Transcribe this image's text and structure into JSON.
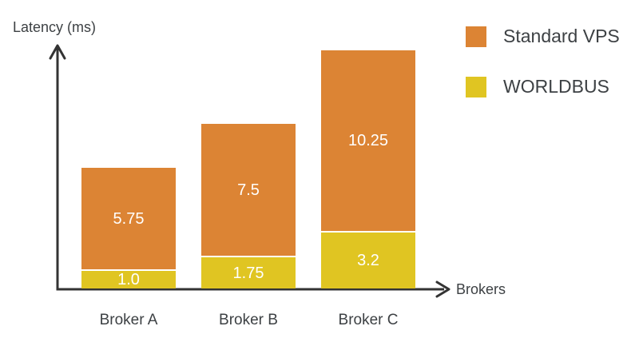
{
  "axes": {
    "y_label": "Latency (ms)",
    "x_label": "Brokers"
  },
  "legend": {
    "items": [
      {
        "label": "Standard VPS",
        "color": "#dc8434"
      },
      {
        "label": "WORLDBUS",
        "color": "#e0c522"
      }
    ]
  },
  "chart_data": {
    "type": "bar",
    "stacked": true,
    "title": "",
    "xlabel": "Brokers",
    "ylabel": "Latency (ms)",
    "categories": [
      "Broker A",
      "Broker B",
      "Broker C"
    ],
    "series": [
      {
        "name": "Standard VPS",
        "color": "#dc8434",
        "values": [
          5.75,
          7.5,
          10.25
        ],
        "labels": [
          "5.75",
          "7.5",
          "10.25"
        ]
      },
      {
        "name": "WORLDBUS",
        "color": "#e0c522",
        "values": [
          1.0,
          1.75,
          3.2
        ],
        "labels": [
          "1.0",
          "1.75",
          "3.2"
        ]
      }
    ],
    "value_label_color": "#ffffff",
    "grid": false,
    "legend_position": "top-right",
    "axis_color": "#333333",
    "text_color": "#3d4144",
    "ylim": [
      0,
      13.8
    ]
  }
}
